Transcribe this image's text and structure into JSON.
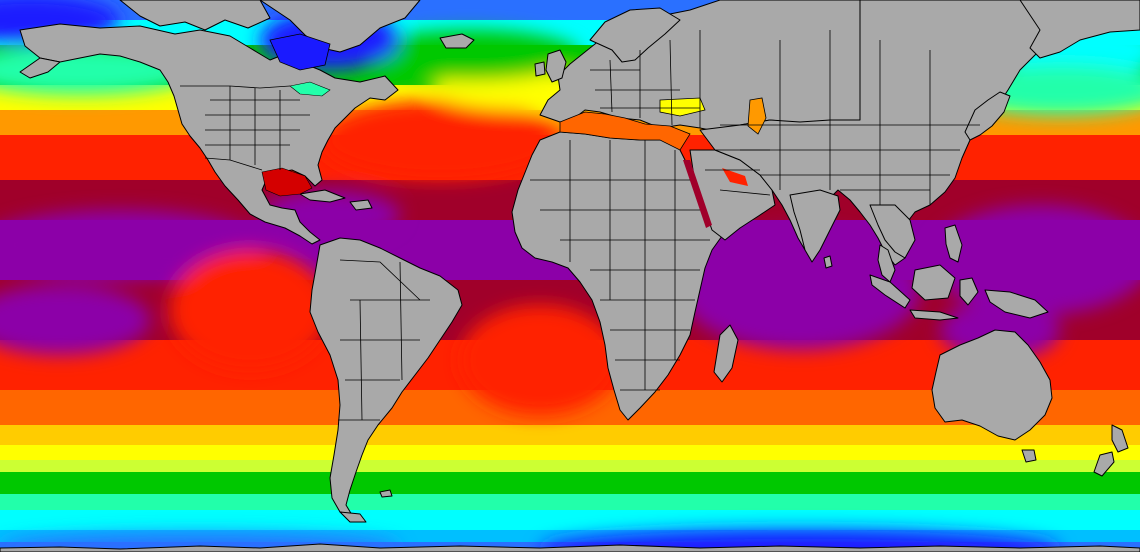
{
  "map": {
    "type": "sea-surface-temperature",
    "projection": "equirectangular",
    "palette": [
      "#1a1aff",
      "#2a70ff",
      "#00bfff",
      "#00ffff",
      "#22ffaa",
      "#00c800",
      "#66ff33",
      "#ccff33",
      "#ffff00",
      "#ffcc00",
      "#ff9900",
      "#ff6600",
      "#ff2200",
      "#d40000",
      "#a0002a",
      "#8b0a6a",
      "#8c00a8",
      "#b000ff",
      "#e040ff"
    ],
    "land_color": "#a9a9a9",
    "coastline_color": "#000000",
    "legend": "none",
    "continents": [
      "north-america",
      "south-america",
      "europe",
      "africa",
      "asia",
      "australia",
      "greenland",
      "antarctica"
    ]
  }
}
